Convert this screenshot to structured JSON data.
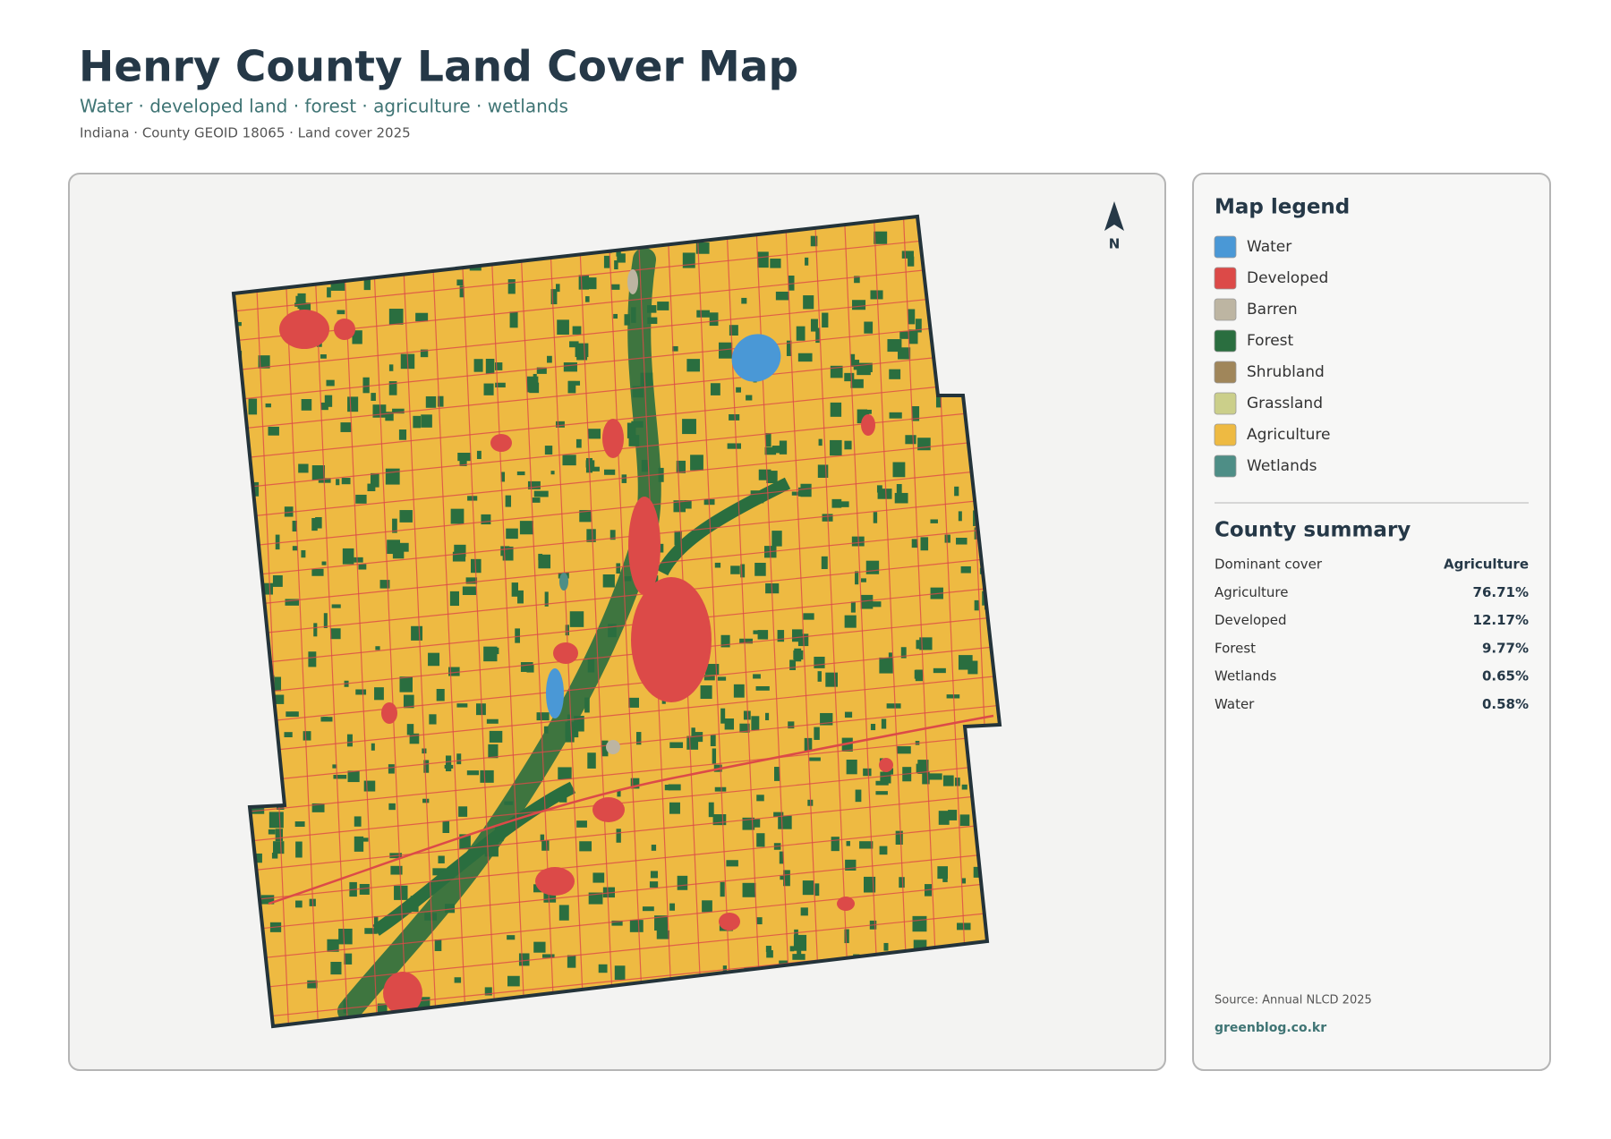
{
  "header": {
    "title": "Henry County Land Cover Map",
    "subtitle": "Water · developed land · forest · agriculture · wetlands",
    "meta": "Indiana · County GEOID 18065 · Land cover 2025"
  },
  "map": {
    "north": "N"
  },
  "legend": {
    "title": "Map legend",
    "items": [
      {
        "label": "Water",
        "color": "#4a98d6"
      },
      {
        "label": "Developed",
        "color": "#dc4a48"
      },
      {
        "label": "Barren",
        "color": "#bdb5a2"
      },
      {
        "label": "Forest",
        "color": "#2a6e3f"
      },
      {
        "label": "Shrubland",
        "color": "#a0865a"
      },
      {
        "label": "Grassland",
        "color": "#cbcf8a"
      },
      {
        "label": "Agriculture",
        "color": "#eeba42"
      },
      {
        "label": "Wetlands",
        "color": "#4e8e86"
      }
    ]
  },
  "summary": {
    "title": "County summary",
    "rows": [
      {
        "label": "Dominant cover",
        "value": "Agriculture"
      },
      {
        "label": "Agriculture",
        "value": "76.71%"
      },
      {
        "label": "Developed",
        "value": "12.17%"
      },
      {
        "label": "Forest",
        "value": "9.77%"
      },
      {
        "label": "Wetlands",
        "value": "0.65%"
      },
      {
        "label": "Water",
        "value": "0.58%"
      }
    ]
  },
  "footer": {
    "source": "Source: Annual NLCD 2025",
    "site": "greenblog.co.kr"
  }
}
